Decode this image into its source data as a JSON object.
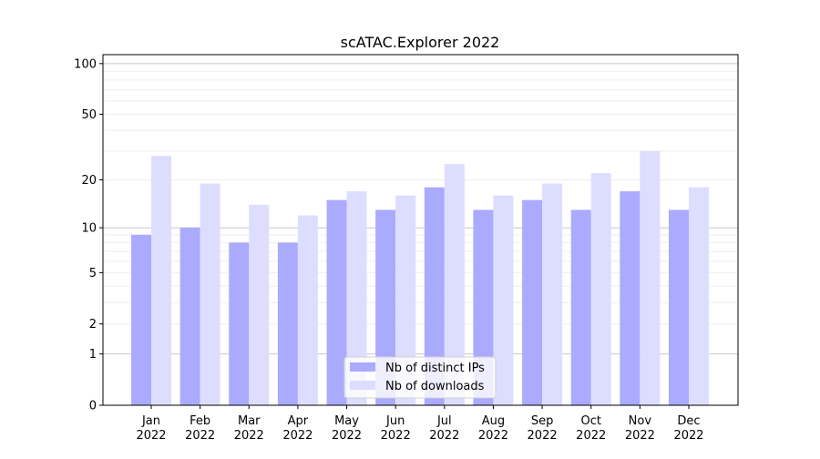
{
  "chart_data": {
    "type": "bar",
    "title": "scATAC.Explorer 2022",
    "xlabel": "",
    "ylabel": "",
    "yscale": "log(1+y)",
    "ylim": [
      0,
      113
    ],
    "yticks": [
      0,
      1,
      2,
      5,
      10,
      20,
      50,
      100
    ],
    "grid": true,
    "legend_position": "bottom-center",
    "categories": [
      "Jan\n2022",
      "Feb\n2022",
      "Mar\n2022",
      "Apr\n2022",
      "May\n2022",
      "Jun\n2022",
      "Jul\n2022",
      "Aug\n2022",
      "Sep\n2022",
      "Oct\n2022",
      "Nov\n2022",
      "Dec\n2022"
    ],
    "series": [
      {
        "name": "Nb of distinct IPs",
        "color": "#aaaaff",
        "values": [
          9,
          10,
          8,
          8,
          15,
          13,
          18,
          13,
          15,
          13,
          17,
          13
        ]
      },
      {
        "name": "Nb of downloads",
        "color": "#ddddff",
        "values": [
          28,
          19,
          14,
          12,
          17,
          16,
          25,
          16,
          19,
          22,
          30,
          18
        ]
      }
    ]
  }
}
